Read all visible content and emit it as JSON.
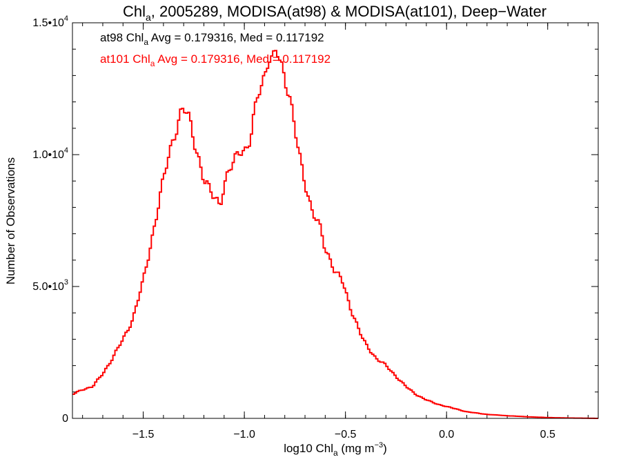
{
  "chart_data": {
    "type": "line",
    "title": {
      "pre": "Chl",
      "sub": "a",
      "post": ", 2005289, MODISA(at98) & MODISA(at101), Deep−Water"
    },
    "xlabel": {
      "pre": "log10 Chl",
      "sub": "a",
      "mid": " (mg m",
      "sup": "−3",
      "post": ")"
    },
    "ylabel": "Number of Observations",
    "xlim": [
      -1.85,
      0.75
    ],
    "ylim": [
      0,
      15000
    ],
    "x_ticks": [
      {
        "value": -1.5,
        "label": "−1.5"
      },
      {
        "value": -1.0,
        "label": "−1.0"
      },
      {
        "value": -0.5,
        "label": "−0.5"
      },
      {
        "value": 0.0,
        "label": "0.0"
      },
      {
        "value": 0.5,
        "label": "0.5"
      }
    ],
    "y_ticks": [
      {
        "value": 0,
        "mant": "0",
        "exp": ""
      },
      {
        "value": 5000,
        "mant": "5.0•10",
        "exp": "3"
      },
      {
        "value": 10000,
        "mant": "1.0•10",
        "exp": "4"
      },
      {
        "value": 15000,
        "mant": "1.5•10",
        "exp": "4"
      }
    ],
    "annotations": [
      {
        "pre": "at98 Chl",
        "sub": "a",
        "post": " Avg = 0.179316, Med = 0.117192",
        "color": "#000000"
      },
      {
        "pre": "at101 Chl",
        "sub": "a",
        "post": " Avg = 0.179316, Med = 0.117192",
        "color": "#ff0000"
      }
    ],
    "series": [
      {
        "color": "#ff0000",
        "x": [
          -1.85,
          -1.8,
          -1.75,
          -1.7,
          -1.65,
          -1.6,
          -1.55,
          -1.5,
          -1.45,
          -1.4,
          -1.38,
          -1.35,
          -1.32,
          -1.3,
          -1.28,
          -1.26,
          -1.23,
          -1.2,
          -1.17,
          -1.14,
          -1.12,
          -1.11,
          -1.1,
          -1.08,
          -1.05,
          -1.02,
          -0.99,
          -0.97,
          -0.95,
          -0.93,
          -0.9,
          -0.88,
          -0.86,
          -0.84,
          -0.82,
          -0.8,
          -0.78,
          -0.76,
          -0.73,
          -0.7,
          -0.67,
          -0.65,
          -0.62,
          -0.6,
          -0.57,
          -0.55,
          -0.52,
          -0.5,
          -0.47,
          -0.45,
          -0.42,
          -0.4,
          -0.35,
          -0.3,
          -0.25,
          -0.2,
          -0.15,
          -0.1,
          -0.05,
          0.0,
          0.05,
          0.1,
          0.2,
          0.3,
          0.4,
          0.5,
          0.6,
          0.75
        ],
        "y": [
          900,
          1100,
          1200,
          1700,
          2300,
          3000,
          3800,
          5200,
          7100,
          9000,
          9800,
          10700,
          11400,
          11700,
          11500,
          11000,
          10000,
          9000,
          8600,
          8400,
          8100,
          8500,
          8800,
          9200,
          9800,
          10300,
          10100,
          10500,
          11500,
          12500,
          13000,
          13700,
          13400,
          14000,
          13500,
          13000,
          12400,
          11400,
          10000,
          9000,
          8000,
          7600,
          7100,
          6400,
          6000,
          5500,
          5300,
          4800,
          4100,
          3700,
          3100,
          2800,
          2300,
          2000,
          1600,
          1200,
          900,
          700,
          550,
          450,
          350,
          250,
          150,
          100,
          60,
          30,
          15,
          0
        ]
      }
    ]
  }
}
